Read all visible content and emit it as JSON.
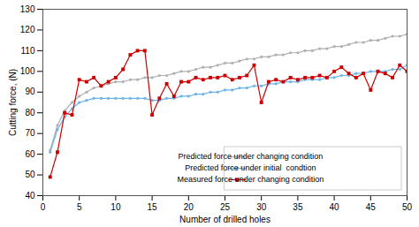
{
  "chart_data": {
    "type": "line",
    "xlabel": "Number of drilled holes",
    "ylabel": "Cutting force, (N)",
    "xlim": [
      0,
      50
    ],
    "ylim": [
      40,
      130
    ],
    "xticks": [
      0,
      5,
      10,
      15,
      20,
      25,
      30,
      35,
      40,
      45,
      50
    ],
    "yticks": [
      40,
      50,
      60,
      70,
      80,
      90,
      100,
      110,
      120,
      130
    ],
    "grid": false,
    "legend": "lower right",
    "x": [
      1,
      2,
      3,
      4,
      5,
      6,
      7,
      8,
      9,
      10,
      11,
      12,
      13,
      14,
      15,
      16,
      17,
      18,
      19,
      20,
      21,
      22,
      23,
      24,
      25,
      26,
      27,
      28,
      29,
      30,
      31,
      32,
      33,
      34,
      35,
      36,
      37,
      38,
      39,
      40,
      41,
      42,
      43,
      44,
      45,
      46,
      47,
      48,
      49,
      50
    ],
    "series": [
      {
        "name": "Predicted force under changing condition",
        "color": "#b0b0b0",
        "marker": "point",
        "line_style": "solid",
        "values": [
          62,
          74,
          81,
          85,
          88,
          90,
          92,
          93,
          94,
          95,
          95,
          96,
          96,
          97,
          97,
          98,
          98,
          99,
          100,
          100,
          101,
          102,
          102,
          103,
          104,
          104,
          105,
          106,
          106,
          107,
          107,
          108,
          108,
          109,
          109,
          110,
          110,
          111,
          111,
          112,
          112,
          113,
          114,
          114,
          115,
          115,
          116,
          117,
          117,
          118
        ]
      },
      {
        "name": "Predicted force under initial  condtion",
        "color": "#6db3e8",
        "marker": "point",
        "line_style": "solid",
        "values": [
          61,
          72,
          78,
          82,
          85,
          86,
          87,
          87,
          87,
          87,
          87,
          87,
          87,
          87,
          86,
          86,
          87,
          87,
          88,
          88,
          89,
          89,
          90,
          90,
          91,
          91,
          92,
          92,
          93,
          93,
          94,
          94,
          95,
          95,
          95,
          96,
          96,
          96,
          97,
          97,
          98,
          98,
          99,
          99,
          100,
          100,
          100,
          101,
          101,
          103
        ]
      },
      {
        "name": "Measured force under changing condition",
        "color": "#cc0000",
        "marker": "square",
        "line_style": "solid",
        "values": [
          49,
          61,
          80,
          79,
          96,
          95,
          97,
          93,
          95,
          97,
          101,
          108,
          110,
          110,
          79,
          87,
          94,
          88,
          95,
          95,
          97,
          96,
          97,
          97,
          98,
          96,
          97,
          98,
          103,
          85,
          95,
          96,
          95,
          97,
          96,
          97,
          97,
          98,
          97,
          100,
          102,
          99,
          97,
          99,
          91,
          100,
          99,
          97,
          103,
          100
        ]
      }
    ]
  }
}
